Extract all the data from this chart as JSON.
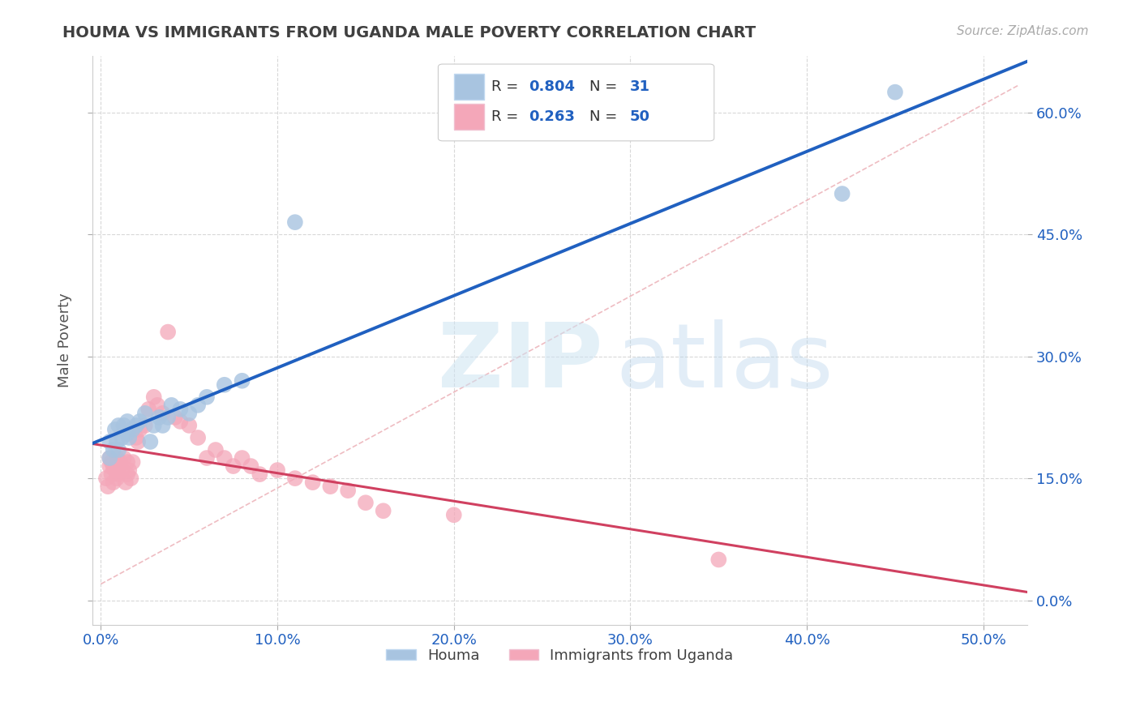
{
  "title": "HOUMA VS IMMIGRANTS FROM UGANDA MALE POVERTY CORRELATION CHART",
  "source": "Source: ZipAtlas.com",
  "xlabel_vals": [
    0.0,
    0.1,
    0.2,
    0.3,
    0.4,
    0.5
  ],
  "ylabel": "Male Poverty",
  "ylabel_vals": [
    0.0,
    0.15,
    0.3,
    0.45,
    0.6
  ],
  "xlim": [
    -0.005,
    0.525
  ],
  "ylim": [
    -0.03,
    0.67
  ],
  "legend1_r": "0.804",
  "legend1_n": "31",
  "legend2_r": "0.263",
  "legend2_n": "50",
  "houma_color": "#a8c4e0",
  "uganda_color": "#f4a7b9",
  "houma_line_color": "#2060c0",
  "uganda_line_color": "#d04060",
  "grid_color": "#d8d8d8",
  "background_color": "#ffffff",
  "title_color": "#404040",
  "tick_color": "#2060c0",
  "houma_scatter_x": [
    0.005,
    0.005,
    0.007,
    0.008,
    0.009,
    0.01,
    0.01,
    0.012,
    0.013,
    0.015,
    0.015,
    0.016,
    0.018,
    0.02,
    0.022,
    0.025,
    0.028,
    0.03,
    0.033,
    0.035,
    0.038,
    0.04,
    0.045,
    0.05,
    0.055,
    0.06,
    0.07,
    0.08,
    0.11,
    0.42,
    0.45
  ],
  "houma_scatter_y": [
    0.195,
    0.175,
    0.185,
    0.21,
    0.195,
    0.215,
    0.185,
    0.2,
    0.215,
    0.205,
    0.22,
    0.2,
    0.21,
    0.215,
    0.22,
    0.23,
    0.195,
    0.215,
    0.225,
    0.215,
    0.225,
    0.24,
    0.235,
    0.23,
    0.24,
    0.25,
    0.265,
    0.27,
    0.465,
    0.5,
    0.625
  ],
  "uganda_scatter_x": [
    0.003,
    0.004,
    0.005,
    0.005,
    0.006,
    0.006,
    0.007,
    0.007,
    0.008,
    0.009,
    0.009,
    0.01,
    0.011,
    0.012,
    0.013,
    0.014,
    0.015,
    0.015,
    0.016,
    0.017,
    0.018,
    0.02,
    0.021,
    0.022,
    0.025,
    0.027,
    0.03,
    0.032,
    0.035,
    0.038,
    0.042,
    0.045,
    0.05,
    0.055,
    0.06,
    0.065,
    0.07,
    0.075,
    0.08,
    0.085,
    0.09,
    0.1,
    0.11,
    0.12,
    0.13,
    0.14,
    0.15,
    0.16,
    0.2,
    0.35
  ],
  "uganda_scatter_y": [
    0.15,
    0.14,
    0.165,
    0.175,
    0.155,
    0.17,
    0.145,
    0.165,
    0.16,
    0.15,
    0.175,
    0.155,
    0.17,
    0.16,
    0.175,
    0.145,
    0.155,
    0.17,
    0.16,
    0.15,
    0.17,
    0.2,
    0.195,
    0.21,
    0.215,
    0.235,
    0.25,
    0.24,
    0.23,
    0.33,
    0.225,
    0.22,
    0.215,
    0.2,
    0.175,
    0.185,
    0.175,
    0.165,
    0.175,
    0.165,
    0.155,
    0.16,
    0.15,
    0.145,
    0.14,
    0.135,
    0.12,
    0.11,
    0.105,
    0.05
  ],
  "legend_bottom_labels": [
    "Houma",
    "Immigrants from Uganda"
  ]
}
